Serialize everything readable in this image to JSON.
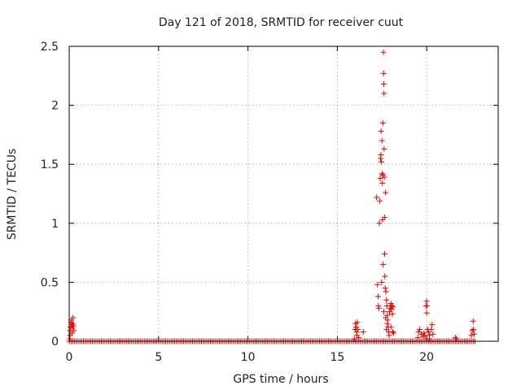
{
  "chart_data": {
    "type": "scatter",
    "title": "Day 121 of 2018, SRMTID for receiver cuut",
    "xlabel": "GPS time / hours",
    "ylabel": "SRMTID / TECUs",
    "xlim": [
      0,
      24
    ],
    "ylim": [
      0,
      2.5
    ],
    "xticks": [
      0,
      5,
      10,
      15,
      20
    ],
    "xtick_labels": [
      "0",
      "5",
      "10",
      "15",
      "20"
    ],
    "yticks": [
      0,
      0.5,
      1,
      1.5,
      2,
      2.5
    ],
    "ytick_labels": [
      "0",
      "0.5",
      "1",
      "1.5",
      "2",
      "2.5"
    ],
    "grid": true,
    "marker": "+",
    "color": "#e00000",
    "baseline": {
      "x_start": 0.0,
      "x_end": 22.7,
      "step": 0.1,
      "y": 0.0
    },
    "series": [
      {
        "name": "SRMTID",
        "points": [
          [
            0.03,
            0.02
          ],
          [
            0.05,
            0.05
          ],
          [
            0.06,
            0.09
          ],
          [
            0.08,
            0.12
          ],
          [
            0.1,
            0.16
          ],
          [
            0.12,
            0.18
          ],
          [
            0.14,
            0.14
          ],
          [
            0.16,
            0.07
          ],
          [
            0.18,
            0.11
          ],
          [
            0.2,
            0.15
          ],
          [
            0.22,
            0.2
          ],
          [
            0.24,
            0.13
          ],
          [
            0.26,
            0.09
          ],
          [
            15.95,
            0.02
          ],
          [
            16.0,
            0.1
          ],
          [
            16.02,
            0.15
          ],
          [
            16.05,
            0.12
          ],
          [
            16.08,
            0.08
          ],
          [
            16.1,
            0.05
          ],
          [
            16.12,
            0.16
          ],
          [
            16.15,
            0.1
          ],
          [
            16.2,
            0.03
          ],
          [
            16.45,
            0.08
          ],
          [
            17.2,
            1.22
          ],
          [
            17.25,
            0.48
          ],
          [
            17.28,
            0.38
          ],
          [
            17.3,
            0.3
          ],
          [
            17.32,
            0.28
          ],
          [
            17.35,
            1.0
          ],
          [
            17.38,
            1.19
          ],
          [
            17.4,
            1.38
          ],
          [
            17.42,
            1.55
          ],
          [
            17.44,
            1.58
          ],
          [
            17.45,
            1.78
          ],
          [
            17.47,
            1.52
          ],
          [
            17.48,
            0.5
          ],
          [
            17.5,
            1.42
          ],
          [
            17.5,
            1.7
          ],
          [
            17.52,
            1.34
          ],
          [
            17.53,
            1.03
          ],
          [
            17.55,
            1.41
          ],
          [
            17.55,
            1.85
          ],
          [
            17.56,
            0.65
          ],
          [
            17.58,
            2.45
          ],
          [
            17.59,
            2.27
          ],
          [
            17.6,
            2.18
          ],
          [
            17.61,
            2.1
          ],
          [
            17.62,
            1.63
          ],
          [
            17.63,
            1.39
          ],
          [
            17.64,
            1.05
          ],
          [
            17.65,
            0.74
          ],
          [
            17.66,
            0.55
          ],
          [
            17.68,
            0.45
          ],
          [
            17.7,
            1.26
          ],
          [
            17.72,
            0.42
          ],
          [
            17.75,
            0.35
          ],
          [
            17.77,
            0.3
          ],
          [
            17.8,
            0.22
          ],
          [
            17.82,
            0.18
          ],
          [
            17.85,
            0.12
          ],
          [
            17.88,
            0.08
          ],
          [
            17.9,
            0.05
          ],
          [
            17.92,
            0.25
          ],
          [
            17.95,
            0.3
          ],
          [
            17.98,
            0.28
          ],
          [
            18.0,
            0.32
          ],
          [
            18.02,
            0.27
          ],
          [
            18.05,
            0.3
          ],
          [
            18.08,
            0.23
          ],
          [
            18.12,
            0.29
          ],
          [
            18.15,
            0.07
          ],
          [
            17.6,
            0.25
          ],
          [
            17.7,
            0.2
          ],
          [
            17.75,
            0.1
          ],
          [
            17.8,
            0.15
          ],
          [
            18.0,
            0.12
          ],
          [
            18.1,
            0.08
          ],
          [
            19.5,
            0.03
          ],
          [
            19.55,
            0.08
          ],
          [
            19.6,
            0.1
          ],
          [
            19.7,
            0.06
          ],
          [
            19.8,
            0.04
          ],
          [
            19.85,
            0.07
          ],
          [
            19.9,
            0.05
          ],
          [
            19.95,
            0.3
          ],
          [
            20.0,
            0.34
          ],
          [
            20.0,
            0.24
          ],
          [
            20.02,
            0.3
          ],
          [
            20.05,
            0.1
          ],
          [
            20.1,
            0.08
          ],
          [
            20.15,
            0.05
          ],
          [
            20.25,
            0.1
          ],
          [
            20.3,
            0.14
          ],
          [
            20.35,
            0.06
          ],
          [
            20.0,
            0.02
          ],
          [
            20.15,
            0.02
          ],
          [
            21.6,
            0.03
          ],
          [
            21.65,
            0.02
          ],
          [
            22.5,
            0.05
          ],
          [
            22.55,
            0.09
          ],
          [
            22.6,
            0.17
          ],
          [
            22.62,
            0.1
          ],
          [
            22.65,
            0.06
          ]
        ]
      }
    ]
  }
}
